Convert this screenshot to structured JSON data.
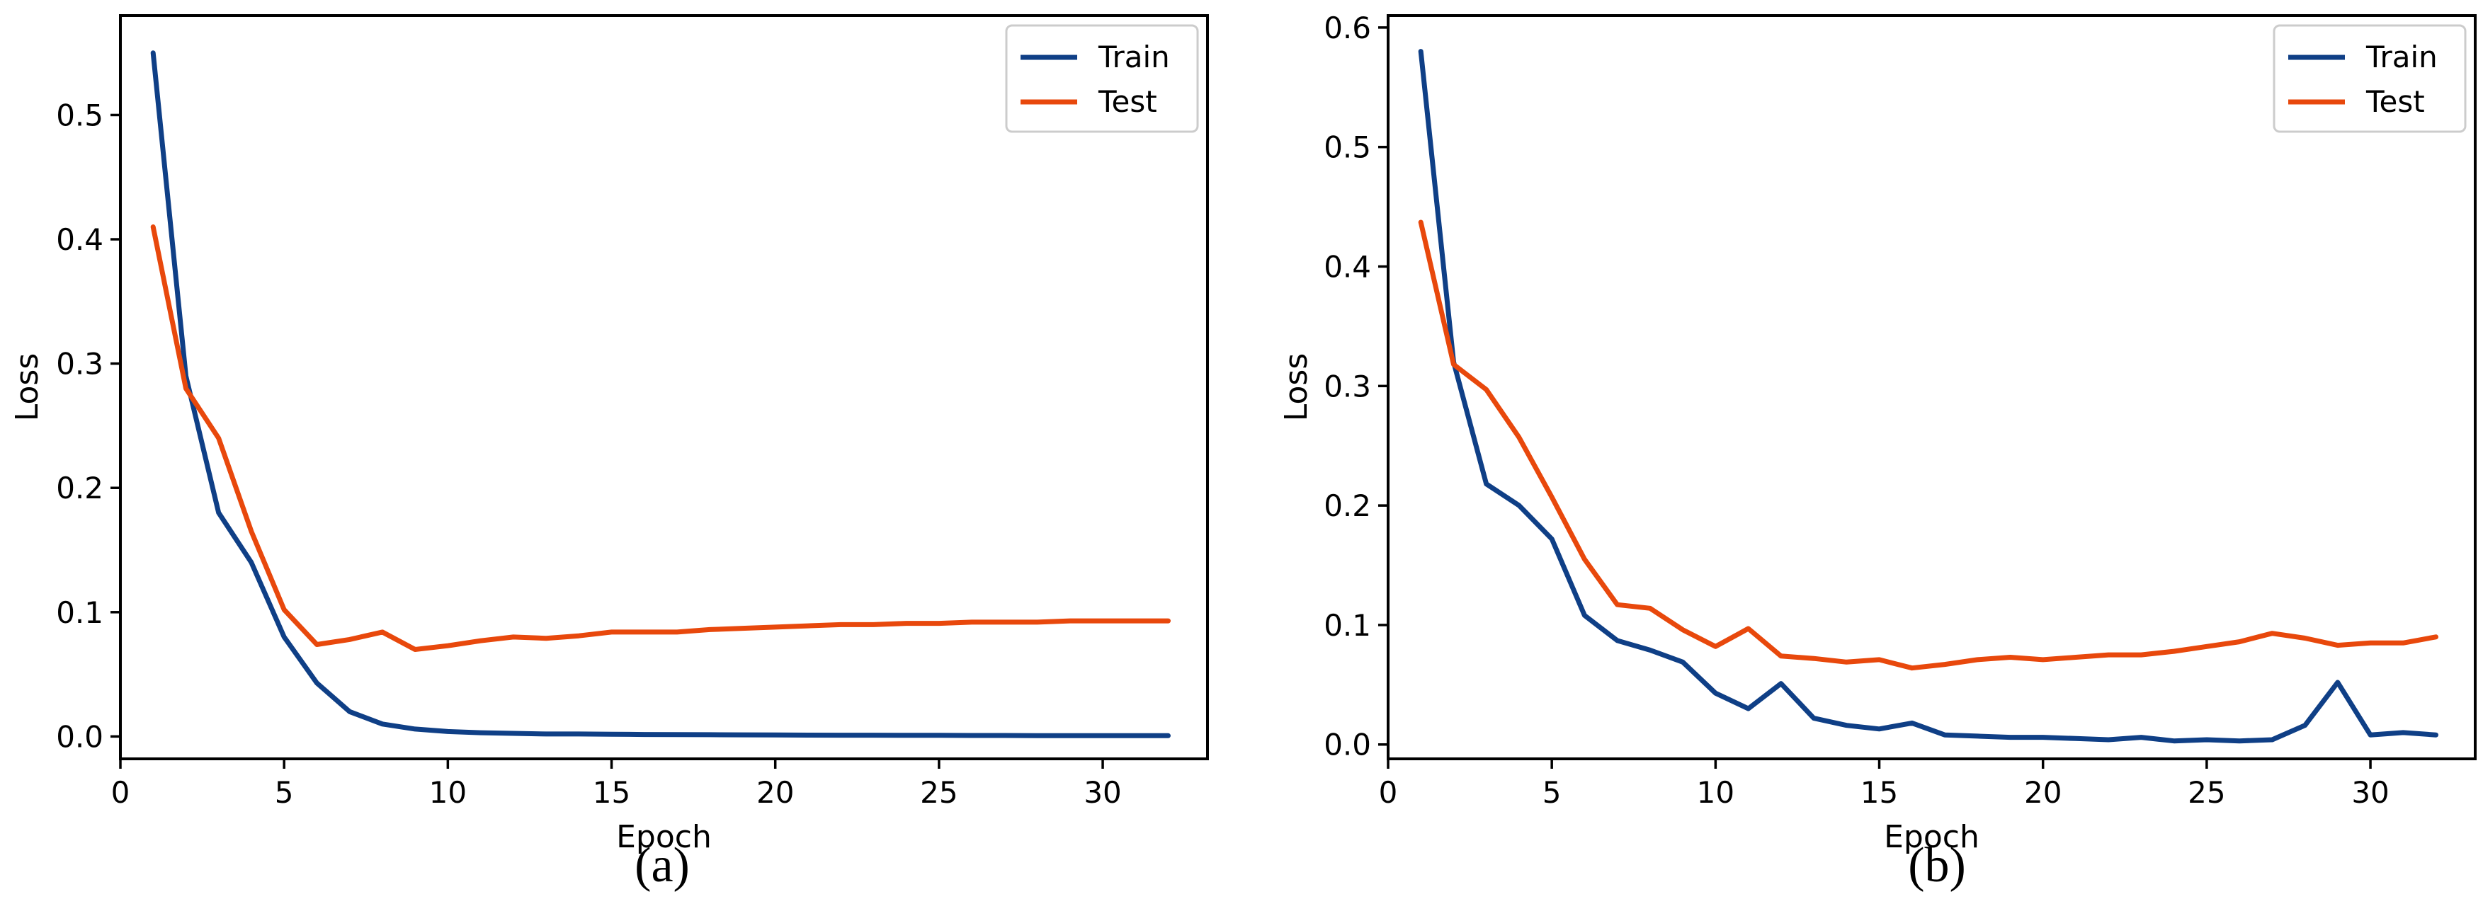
{
  "chart_data": [
    {
      "type": "line",
      "caption": "(a)",
      "xlabel": "Epoch",
      "ylabel": "Loss",
      "xlim": [
        0.0,
        33.2
      ],
      "ylim": [
        -0.018,
        0.58
      ],
      "xticks": [
        0,
        5,
        10,
        15,
        20,
        25,
        30
      ],
      "yticks": [
        0.0,
        0.1,
        0.2,
        0.3,
        0.4,
        0.5
      ],
      "ytick_labels": [
        "0.0",
        "0.1",
        "0.2",
        "0.3",
        "0.4",
        "0.5"
      ],
      "legend_position": "top-right",
      "x": [
        1,
        2,
        3,
        4,
        5,
        6,
        7,
        8,
        9,
        10,
        11,
        12,
        13,
        14,
        15,
        16,
        17,
        18,
        19,
        20,
        21,
        22,
        23,
        24,
        25,
        26,
        27,
        28,
        29,
        30,
        31,
        32
      ],
      "series": [
        {
          "name": "Train",
          "color": "#0f3f86",
          "values": [
            0.55,
            0.29,
            0.18,
            0.14,
            0.08,
            0.043,
            0.02,
            0.01,
            0.006,
            0.004,
            0.003,
            0.0025,
            0.002,
            0.002,
            0.0018,
            0.0016,
            0.0015,
            0.0014,
            0.0013,
            0.0012,
            0.0011,
            0.001,
            0.001,
            0.0009,
            0.0009,
            0.0008,
            0.0008,
            0.0007,
            0.0007,
            0.0007,
            0.0006,
            0.0006
          ]
        },
        {
          "name": "Test",
          "color": "#e8480c",
          "values": [
            0.41,
            0.28,
            0.24,
            0.165,
            0.102,
            0.074,
            0.078,
            0.084,
            0.07,
            0.073,
            0.077,
            0.08,
            0.079,
            0.081,
            0.084,
            0.084,
            0.084,
            0.086,
            0.087,
            0.088,
            0.089,
            0.09,
            0.09,
            0.091,
            0.091,
            0.092,
            0.092,
            0.092,
            0.093,
            0.093,
            0.093,
            0.093
          ]
        }
      ]
    },
    {
      "type": "line",
      "caption": "(b)",
      "xlabel": "Epoch",
      "ylabel": "Loss",
      "xlim": [
        0.0,
        33.2
      ],
      "ylim": [
        -0.012,
        0.61
      ],
      "xticks": [
        0,
        5,
        10,
        15,
        20,
        25,
        30
      ],
      "yticks": [
        0.0,
        0.1,
        0.2,
        0.3,
        0.4,
        0.5,
        0.6
      ],
      "ytick_labels": [
        "0.0",
        "0.1",
        "0.2",
        "0.3",
        "0.4",
        "0.5",
        "0.6"
      ],
      "legend_position": "top-right",
      "x": [
        1,
        2,
        3,
        4,
        5,
        6,
        7,
        8,
        9,
        10,
        11,
        12,
        13,
        14,
        15,
        16,
        17,
        18,
        19,
        20,
        21,
        22,
        23,
        24,
        25,
        26,
        27,
        28,
        29,
        30,
        31,
        32
      ],
      "series": [
        {
          "name": "Train",
          "color": "#0f3f86",
          "values": [
            0.58,
            0.32,
            0.218,
            0.2,
            0.172,
            0.108,
            0.087,
            0.079,
            0.069,
            0.043,
            0.03,
            0.051,
            0.022,
            0.016,
            0.013,
            0.018,
            0.008,
            0.007,
            0.006,
            0.006,
            0.005,
            0.004,
            0.006,
            0.003,
            0.004,
            0.003,
            0.004,
            0.016,
            0.052,
            0.008,
            0.01,
            0.008
          ]
        },
        {
          "name": "Test",
          "color": "#e8480c",
          "values": [
            0.437,
            0.318,
            0.297,
            0.257,
            0.207,
            0.155,
            0.117,
            0.114,
            0.096,
            0.082,
            0.097,
            0.074,
            0.072,
            0.069,
            0.071,
            0.064,
            0.067,
            0.071,
            0.073,
            0.071,
            0.073,
            0.075,
            0.075,
            0.078,
            0.082,
            0.086,
            0.093,
            0.089,
            0.083,
            0.085,
            0.085,
            0.09
          ]
        }
      ]
    }
  ]
}
